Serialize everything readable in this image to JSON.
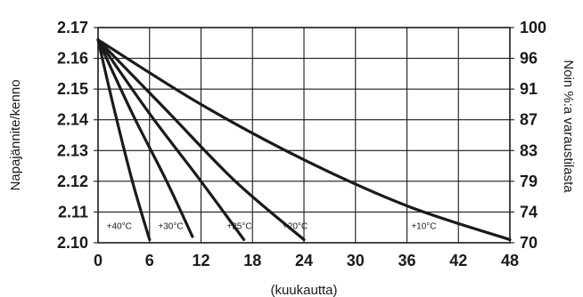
{
  "chart_data": {
    "type": "line",
    "xlabel": "(kuukautta)",
    "ylabel": "Napajännite/kenno",
    "y2label": "Noin %:a varaustilasta",
    "xlim": [
      0,
      48
    ],
    "ylim": [
      2.1,
      2.17
    ],
    "x_ticks": [
      "0",
      "6",
      "12",
      "18",
      "24",
      "30",
      "36",
      "42",
      "48"
    ],
    "y_ticks": [
      "2.10",
      "2.11",
      "2.12",
      "2.13",
      "2.14",
      "2.15",
      "2.16",
      "2.17"
    ],
    "y2_ticks": [
      "70",
      "74",
      "79",
      "83",
      "87",
      "91",
      "96",
      "100"
    ],
    "grid": true,
    "series": [
      {
        "name": "+40°C",
        "x": [
          0,
          2,
          4,
          6
        ],
        "y": [
          2.166,
          2.142,
          2.12,
          2.101
        ]
      },
      {
        "name": "+30°C",
        "x": [
          0,
          4,
          8,
          11
        ],
        "y": [
          2.166,
          2.142,
          2.12,
          2.102
        ]
      },
      {
        "name": "+25°C",
        "x": [
          0,
          6,
          12,
          17
        ],
        "y": [
          2.166,
          2.142,
          2.12,
          2.101
        ]
      },
      {
        "name": "+20°C",
        "x": [
          0,
          8,
          16,
          24
        ],
        "y": [
          2.166,
          2.143,
          2.12,
          2.101
        ]
      },
      {
        "name": "+10°C",
        "x": [
          0,
          12,
          24,
          36,
          48
        ],
        "y": [
          2.166,
          2.145,
          2.127,
          2.112,
          2.101
        ]
      }
    ],
    "series_labels_at": [
      {
        "name": "+40°C",
        "x": 1.0,
        "y": 2.1045
      },
      {
        "name": "+30°C",
        "x": 7.0,
        "y": 2.1045
      },
      {
        "name": "+25°C",
        "x": 15.0,
        "y": 2.1045
      },
      {
        "name": "+20°C",
        "x": 21.5,
        "y": 2.1045
      },
      {
        "name": "+10°C",
        "x": 36.5,
        "y": 2.1045
      }
    ]
  }
}
